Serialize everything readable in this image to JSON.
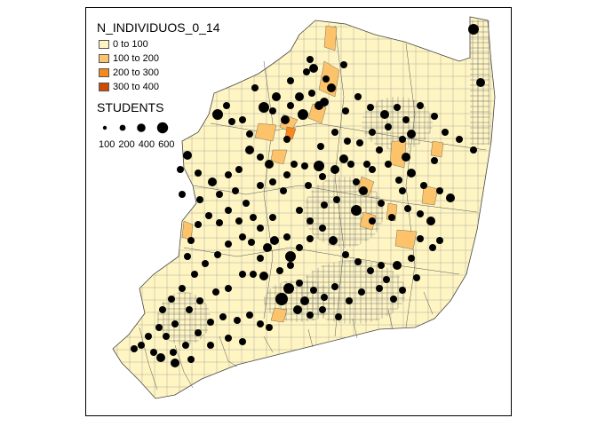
{
  "legend": {
    "fill_title": "N_INDIVIDUOS_0_14",
    "fill_classes": [
      {
        "label": "0 to 100",
        "color": "#FFF5C2"
      },
      {
        "label": "100 to 200",
        "color": "#FDC36B"
      },
      {
        "label": "200 to 300",
        "color": "#F7881E"
      },
      {
        "label": "300 to 400",
        "color": "#CC4C02"
      }
    ],
    "size_title": "STUDENTS",
    "size_labels": [
      "100",
      "200",
      "400",
      "600"
    ]
  },
  "colors": {
    "border": "#666666",
    "bubble": "#000000",
    "frame": "#000000"
  }
}
